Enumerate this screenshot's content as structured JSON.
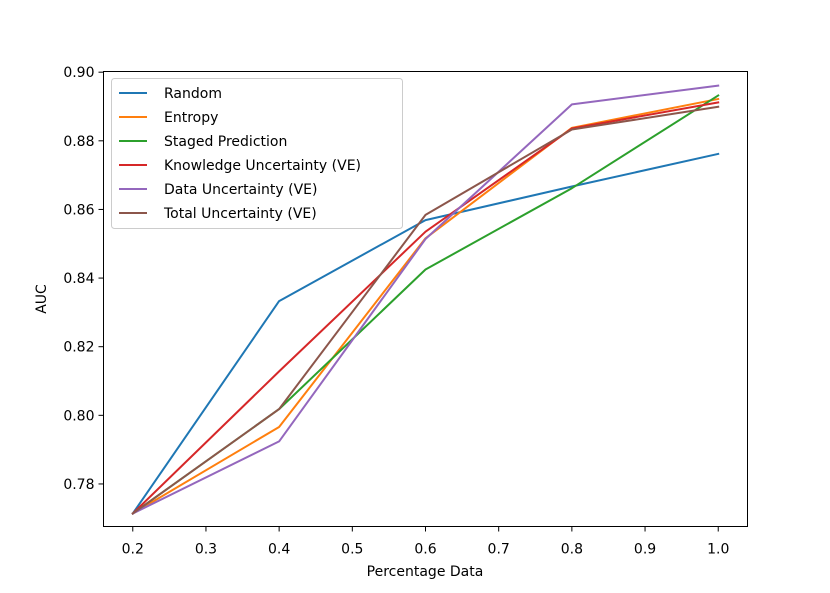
{
  "chart_data": {
    "type": "line",
    "title": "",
    "xlabel": "Percentage Data",
    "ylabel": "AUC",
    "x": [
      0.2,
      0.4,
      0.6,
      0.8,
      1.0
    ],
    "xlim": [
      0.16,
      1.04
    ],
    "ylim": [
      0.7676,
      0.9002
    ],
    "xticks": [
      0.2,
      0.3,
      0.4,
      0.5,
      0.6,
      0.7,
      0.8,
      0.9,
      1.0
    ],
    "xtick_labels": [
      "0.2",
      "0.3",
      "0.4",
      "0.5",
      "0.6",
      "0.7",
      "0.8",
      "0.9",
      "1.0"
    ],
    "yticks": [
      0.78,
      0.8,
      0.82,
      0.84,
      0.86,
      0.88,
      0.9
    ],
    "ytick_labels": [
      "0.78",
      "0.80",
      "0.82",
      "0.84",
      "0.86",
      "0.88",
      "0.90"
    ],
    "grid": false,
    "legend_position": "top-left",
    "series": [
      {
        "name": "Random",
        "color": "#1f77b4",
        "values": [
          0.7714,
          0.8333,
          0.8569,
          0.8667,
          0.8762
        ]
      },
      {
        "name": "Entropy",
        "color": "#ff7f0e",
        "values": [
          0.7714,
          0.7966,
          0.8516,
          0.8838,
          0.8922
        ]
      },
      {
        "name": "Staged Prediction",
        "color": "#2ca02c",
        "values": [
          0.7714,
          0.8018,
          0.8425,
          0.8662,
          0.8932
        ]
      },
      {
        "name": "Knowledge Uncertainty (VE)",
        "color": "#d62728",
        "values": [
          0.7714,
          0.8128,
          0.8535,
          0.8836,
          0.8912
        ]
      },
      {
        "name": "Data Uncertainty  (VE)",
        "color": "#9467bd",
        "values": [
          0.7714,
          0.7924,
          0.8514,
          0.8906,
          0.8961
        ]
      },
      {
        "name": "Total Uncertainty (VE)",
        "color": "#8c564b",
        "values": [
          0.7714,
          0.8018,
          0.8584,
          0.8833,
          0.8899
        ]
      }
    ]
  }
}
